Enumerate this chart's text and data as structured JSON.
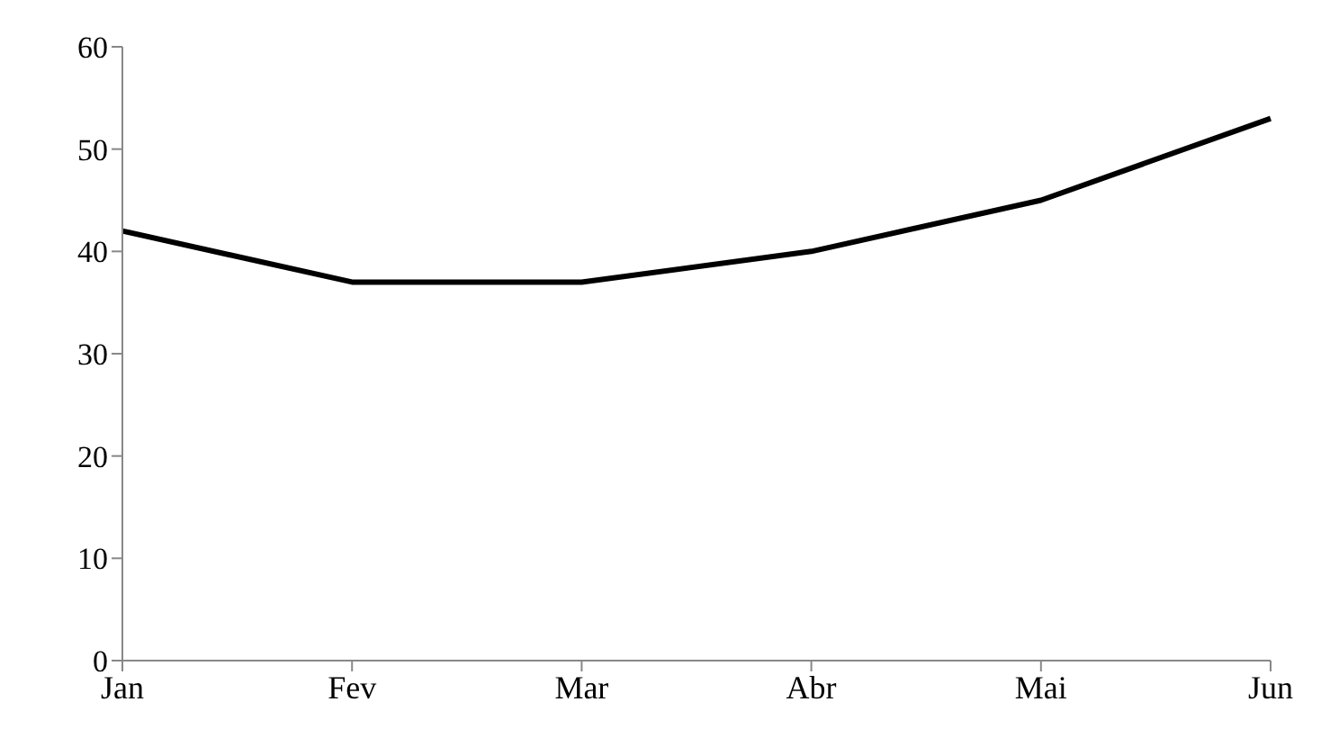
{
  "chart_data": {
    "type": "line",
    "categories": [
      "Jan",
      "Fev",
      "Mar",
      "Abr",
      "Mai",
      "Jun"
    ],
    "series": [
      {
        "color": "#000000",
        "values": [
          42,
          37,
          37,
          40,
          45,
          53
        ]
      }
    ],
    "ylim": [
      0,
      60
    ],
    "yticks": [
      0,
      10,
      20,
      30,
      40,
      50,
      60
    ],
    "grid": false,
    "legend": false,
    "marker": "none",
    "line_style": "solid"
  }
}
